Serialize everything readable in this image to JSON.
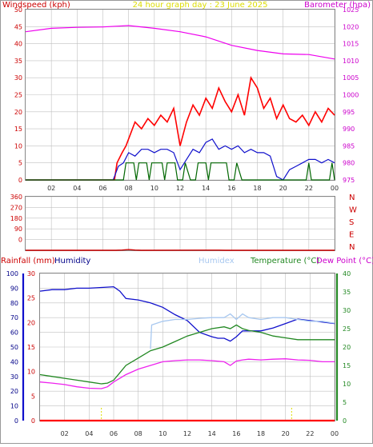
{
  "header": {
    "left_title": "Windspeed (kph)",
    "center_title": "24 hour graph day : 23 June 2025",
    "right_title": "Barometer (hpa)"
  },
  "lower_header": {
    "rainfall": "Rainfall (mm)",
    "humidity": "Humidity",
    "humidex": "Humidex",
    "temperature": "Temperature (°C)",
    "dewpoint": "Dew Point (°C)"
  },
  "colors": {
    "wind": "#ff0000",
    "barometer": "#ee00ee",
    "direction": "#cc0000",
    "rain": "#ff0000",
    "humidity": "#1010cc",
    "humidex": "#a8c8f0",
    "temperature": "#228822",
    "dewpoint": "#ee22ee",
    "gust": "#006600",
    "grid": "#c0c0c0"
  },
  "chart_data": [
    {
      "type": "line",
      "panel": "wind-barometer",
      "x_ticks": [
        "02",
        "04",
        "06",
        "08",
        "10",
        "12",
        "14",
        "16",
        "18",
        "20",
        "22",
        "00"
      ],
      "x_range_hours": [
        0,
        24
      ],
      "left_axis": {
        "label": "Windspeed (kph)",
        "range": [
          0,
          50
        ],
        "ticks": [
          0,
          5,
          10,
          15,
          20,
          25,
          30,
          35,
          40,
          45,
          50
        ]
      },
      "right_axis": {
        "label": "Barometer (hpa)",
        "range": [
          975,
          1025
        ],
        "ticks": [
          975,
          980,
          985,
          990,
          995,
          1000,
          1005,
          1010,
          1015,
          1020,
          1025
        ]
      },
      "series": [
        {
          "key": "wind_gust",
          "color": "#ff0000",
          "axis": "left",
          "points": [
            [
              0,
              0
            ],
            [
              6.3,
              0
            ],
            [
              6.9,
              0
            ],
            [
              7.1,
              5
            ],
            [
              7.5,
              8
            ],
            [
              7.8,
              10
            ],
            [
              8.5,
              17
            ],
            [
              9,
              15
            ],
            [
              9.5,
              18
            ],
            [
              10,
              16
            ],
            [
              10.5,
              19
            ],
            [
              11,
              17
            ],
            [
              11.5,
              21
            ],
            [
              12,
              10
            ],
            [
              12.5,
              17
            ],
            [
              13,
              22
            ],
            [
              13.5,
              19
            ],
            [
              14,
              24
            ],
            [
              14.5,
              21
            ],
            [
              15,
              27
            ],
            [
              15.5,
              23
            ],
            [
              16,
              20
            ],
            [
              16.5,
              25
            ],
            [
              17,
              19
            ],
            [
              17.5,
              30
            ],
            [
              18,
              27
            ],
            [
              18.5,
              21
            ],
            [
              19,
              24
            ],
            [
              19.5,
              18
            ],
            [
              20,
              22
            ],
            [
              20.5,
              18
            ],
            [
              21,
              17
            ],
            [
              21.5,
              19
            ],
            [
              22,
              16
            ],
            [
              22.5,
              20
            ],
            [
              23,
              17
            ],
            [
              23.5,
              21
            ],
            [
              24,
              19
            ]
          ]
        },
        {
          "key": "wind_average",
          "color": "#1010cc",
          "axis": "left",
          "points": [
            [
              0,
              0
            ],
            [
              6.8,
              0
            ],
            [
              7.2,
              4
            ],
            [
              7.6,
              5
            ],
            [
              8,
              8
            ],
            [
              8.5,
              7
            ],
            [
              9,
              9
            ],
            [
              9.5,
              9
            ],
            [
              10,
              8
            ],
            [
              10.5,
              9
            ],
            [
              11,
              9
            ],
            [
              11.5,
              8
            ],
            [
              12,
              3
            ],
            [
              12.5,
              6
            ],
            [
              13,
              9
            ],
            [
              13.5,
              8
            ],
            [
              14,
              11
            ],
            [
              14.5,
              12
            ],
            [
              15,
              9
            ],
            [
              15.5,
              10
            ],
            [
              16,
              9
            ],
            [
              16.5,
              10
            ],
            [
              17,
              8
            ],
            [
              17.5,
              9
            ],
            [
              18,
              8
            ],
            [
              18.5,
              8
            ],
            [
              19,
              7
            ],
            [
              19.5,
              1
            ],
            [
              20,
              0
            ],
            [
              20.5,
              3
            ],
            [
              21,
              4
            ],
            [
              21.5,
              5
            ],
            [
              22,
              6
            ],
            [
              22.5,
              6
            ],
            [
              23,
              5
            ],
            [
              23.5,
              6
            ],
            [
              24,
              5
            ]
          ]
        },
        {
          "key": "wind_gust_peak",
          "color": "#006600",
          "axis": "left",
          "points": [
            [
              0,
              0
            ],
            [
              7.6,
              0
            ],
            [
              7.8,
              5
            ],
            [
              8.4,
              5
            ],
            [
              8.6,
              0
            ],
            [
              8.8,
              5
            ],
            [
              9.4,
              5
            ],
            [
              9.6,
              0
            ],
            [
              9.8,
              5
            ],
            [
              10.6,
              5
            ],
            [
              10.8,
              0
            ],
            [
              11,
              5
            ],
            [
              11.6,
              5
            ],
            [
              11.8,
              0
            ],
            [
              12.2,
              0
            ],
            [
              12.4,
              5
            ],
            [
              12.8,
              0
            ],
            [
              13.2,
              0
            ],
            [
              13.4,
              5
            ],
            [
              14,
              5
            ],
            [
              14.2,
              0
            ],
            [
              14.4,
              5
            ],
            [
              15.6,
              5
            ],
            [
              15.8,
              0
            ],
            [
              16.2,
              0
            ],
            [
              16.4,
              5
            ],
            [
              16.8,
              0
            ],
            [
              21.8,
              0
            ],
            [
              22,
              5
            ],
            [
              22.2,
              0
            ],
            [
              23.6,
              0
            ],
            [
              23.8,
              5
            ],
            [
              24,
              0
            ]
          ]
        },
        {
          "key": "barometer",
          "color": "#ee00ee",
          "axis": "right",
          "points": [
            [
              0,
              1018.5
            ],
            [
              2,
              1019.5
            ],
            [
              4,
              1019.8
            ],
            [
              6,
              1019.9
            ],
            [
              8,
              1020.3
            ],
            [
              10,
              1019.5
            ],
            [
              12,
              1018.5
            ],
            [
              14,
              1017
            ],
            [
              16,
              1014.5
            ],
            [
              18,
              1013
            ],
            [
              20,
              1012
            ],
            [
              22,
              1011.8
            ],
            [
              24,
              1010.5
            ]
          ]
        }
      ]
    },
    {
      "type": "line",
      "panel": "wind-direction",
      "left_axis": {
        "range": [
          0,
          360
        ],
        "ticks": [
          0,
          90,
          180,
          270,
          360
        ]
      },
      "right_axis": {
        "ticks": [
          "N",
          "W",
          "S",
          "E",
          "N"
        ]
      },
      "series": [
        {
          "key": "direction",
          "color": "#cc0000",
          "points": [
            [
              0,
              0
            ],
            [
              7,
              0
            ],
            [
              7.5,
              5
            ],
            [
              8,
              15
            ],
            [
              8.5,
              5
            ],
            [
              9,
              0
            ],
            [
              15,
              3
            ],
            [
              15.5,
              0
            ],
            [
              24,
              0
            ]
          ]
        }
      ]
    },
    {
      "type": "line",
      "panel": "temperature-humidity-rain",
      "x_ticks": [
        "02",
        "04",
        "06",
        "08",
        "10",
        "12",
        "14",
        "16",
        "18",
        "20",
        "22",
        "00"
      ],
      "humidity_axis": {
        "label": "Humidity",
        "range": [
          0,
          100
        ],
        "ticks": [
          0,
          10,
          20,
          30,
          40,
          50,
          60,
          70,
          80,
          90,
          100
        ]
      },
      "rain_axis": {
        "label": "Rainfall (mm)",
        "range": [
          0,
          30
        ],
        "ticks": [
          0,
          5,
          10,
          15,
          20,
          25,
          30
        ]
      },
      "temp_axis": {
        "label": "Temperature (°C)",
        "range": [
          0,
          40
        ],
        "ticks": [
          0,
          5,
          10,
          15,
          20,
          25,
          30,
          35,
          40
        ]
      },
      "series": [
        {
          "key": "humidity",
          "color": "#1010cc",
          "axis": "humidity",
          "points": [
            [
              0,
              88
            ],
            [
              1,
              89
            ],
            [
              2,
              89
            ],
            [
              3,
              90
            ],
            [
              4,
              90
            ],
            [
              5,
              90.5
            ],
            [
              6,
              91
            ],
            [
              6.5,
              88
            ],
            [
              7,
              83
            ],
            [
              8,
              82
            ],
            [
              9,
              80
            ],
            [
              10,
              77
            ],
            [
              11,
              72
            ],
            [
              12,
              68
            ],
            [
              13,
              60
            ],
            [
              14,
              57
            ],
            [
              14.5,
              56
            ],
            [
              15,
              56
            ],
            [
              15.5,
              54
            ],
            [
              16,
              57
            ],
            [
              16.5,
              61
            ],
            [
              17,
              61
            ],
            [
              18,
              61
            ],
            [
              19,
              63
            ],
            [
              20,
              66
            ],
            [
              21,
              69
            ],
            [
              22,
              68
            ],
            [
              23,
              67
            ],
            [
              24,
              66
            ]
          ]
        },
        {
          "key": "humidex",
          "color": "#a8c8f0",
          "axis": "temp",
          "points": [
            [
              9,
              19.5
            ],
            [
              9.1,
              26
            ],
            [
              10,
              27
            ],
            [
              11,
              27.5
            ],
            [
              12,
              27.5
            ],
            [
              13,
              27.8
            ],
            [
              14,
              28
            ],
            [
              15,
              28
            ],
            [
              15.5,
              29
            ],
            [
              16,
              27.5
            ],
            [
              16.5,
              29
            ],
            [
              17,
              28
            ],
            [
              18,
              27.5
            ],
            [
              19,
              28
            ],
            [
              20,
              28
            ],
            [
              21,
              27.5
            ],
            [
              22,
              27
            ],
            [
              23,
              27
            ],
            [
              24,
              26.5
            ]
          ]
        },
        {
          "key": "temperature",
          "color": "#228822",
          "axis": "temp",
          "points": [
            [
              0,
              12.5
            ],
            [
              1,
              12
            ],
            [
              2,
              11.5
            ],
            [
              3,
              11
            ],
            [
              4,
              10.5
            ],
            [
              5,
              10
            ],
            [
              5.5,
              10.2
            ],
            [
              6,
              11
            ],
            [
              6.5,
              13
            ],
            [
              7,
              15
            ],
            [
              8,
              17
            ],
            [
              9,
              19
            ],
            [
              10,
              20
            ],
            [
              11,
              21.5
            ],
            [
              12,
              23
            ],
            [
              13,
              24
            ],
            [
              14,
              25
            ],
            [
              15,
              25.5
            ],
            [
              15.5,
              25
            ],
            [
              16,
              26
            ],
            [
              16.5,
              25
            ],
            [
              17,
              24.5
            ],
            [
              18,
              24
            ],
            [
              19,
              23
            ],
            [
              20,
              22.5
            ],
            [
              21,
              22
            ],
            [
              22,
              22
            ],
            [
              23,
              22
            ],
            [
              24,
              22
            ]
          ]
        },
        {
          "key": "dewpoint",
          "color": "#ee22ee",
          "axis": "temp",
          "points": [
            [
              0,
              10.5
            ],
            [
              1,
              10.2
            ],
            [
              2,
              9.8
            ],
            [
              3,
              9.2
            ],
            [
              4,
              8.8
            ],
            [
              5,
              8.7
            ],
            [
              5.5,
              9.2
            ],
            [
              6,
              10.5
            ],
            [
              6.5,
              11.5
            ],
            [
              7,
              12.5
            ],
            [
              8,
              14
            ],
            [
              9,
              15
            ],
            [
              10,
              16
            ],
            [
              11,
              16.3
            ],
            [
              12,
              16.5
            ],
            [
              13,
              16.5
            ],
            [
              14,
              16.3
            ],
            [
              15,
              16
            ],
            [
              15.5,
              15
            ],
            [
              16,
              16.2
            ],
            [
              16.5,
              16.5
            ],
            [
              17,
              16.7
            ],
            [
              18,
              16.5
            ],
            [
              19,
              16.7
            ],
            [
              20,
              16.8
            ],
            [
              21,
              16.5
            ],
            [
              22,
              16.4
            ],
            [
              23,
              16
            ],
            [
              24,
              16
            ]
          ]
        },
        {
          "key": "rainfall",
          "color": "#ff0000",
          "axis": "rain",
          "points": [
            [
              0,
              0
            ],
            [
              24,
              0
            ]
          ]
        }
      ]
    }
  ]
}
